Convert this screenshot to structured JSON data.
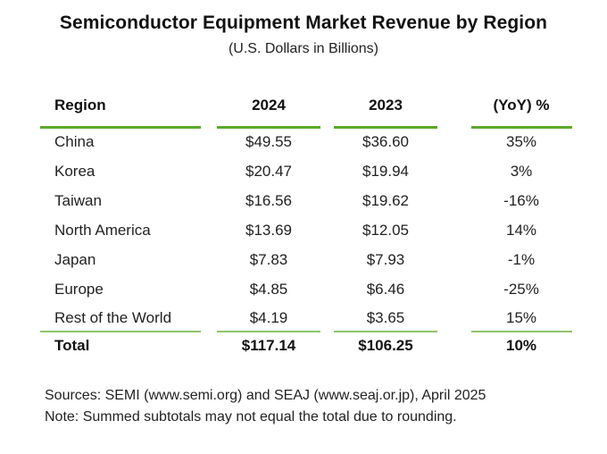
{
  "title": "Semiconductor Equipment Market Revenue by Region",
  "subtitle": "(U.S. Dollars in Billions)",
  "columns": [
    "Region",
    "2024",
    "2023",
    "(YoY) %"
  ],
  "rows": [
    {
      "region": "China",
      "y2024": "$49.55",
      "y2023": "$36.60",
      "yoy": "35%"
    },
    {
      "region": "Korea",
      "y2024": "$20.47",
      "y2023": "$19.94",
      "yoy": "3%"
    },
    {
      "region": "Taiwan",
      "y2024": "$16.56",
      "y2023": "$19.62",
      "yoy": "-16%"
    },
    {
      "region": "North America",
      "y2024": "$13.69",
      "y2023": "$12.05",
      "yoy": "14%"
    },
    {
      "region": "Japan",
      "y2024": "$7.83",
      "y2023": "$7.93",
      "yoy": "-1%"
    },
    {
      "region": "Europe",
      "y2024": "$4.85",
      "y2023": "$6.46",
      "yoy": "-25%"
    },
    {
      "region": "Rest of the World",
      "y2024": "$4.19",
      "y2023": "$3.65",
      "yoy": "15%"
    }
  ],
  "total": {
    "region": "Total",
    "y2024": "$117.14",
    "y2023": "$106.25",
    "yoy": "10%"
  },
  "footer": {
    "sources": "Sources: SEMI (www.semi.org) and SEAJ (www.seaj.or.jp), April 2025",
    "note": "Note: Summed subtotals may not equal the total due to rounding."
  },
  "colors": {
    "accent_rule": "#5aaa2a",
    "total_rule": "#8fc46c"
  }
}
